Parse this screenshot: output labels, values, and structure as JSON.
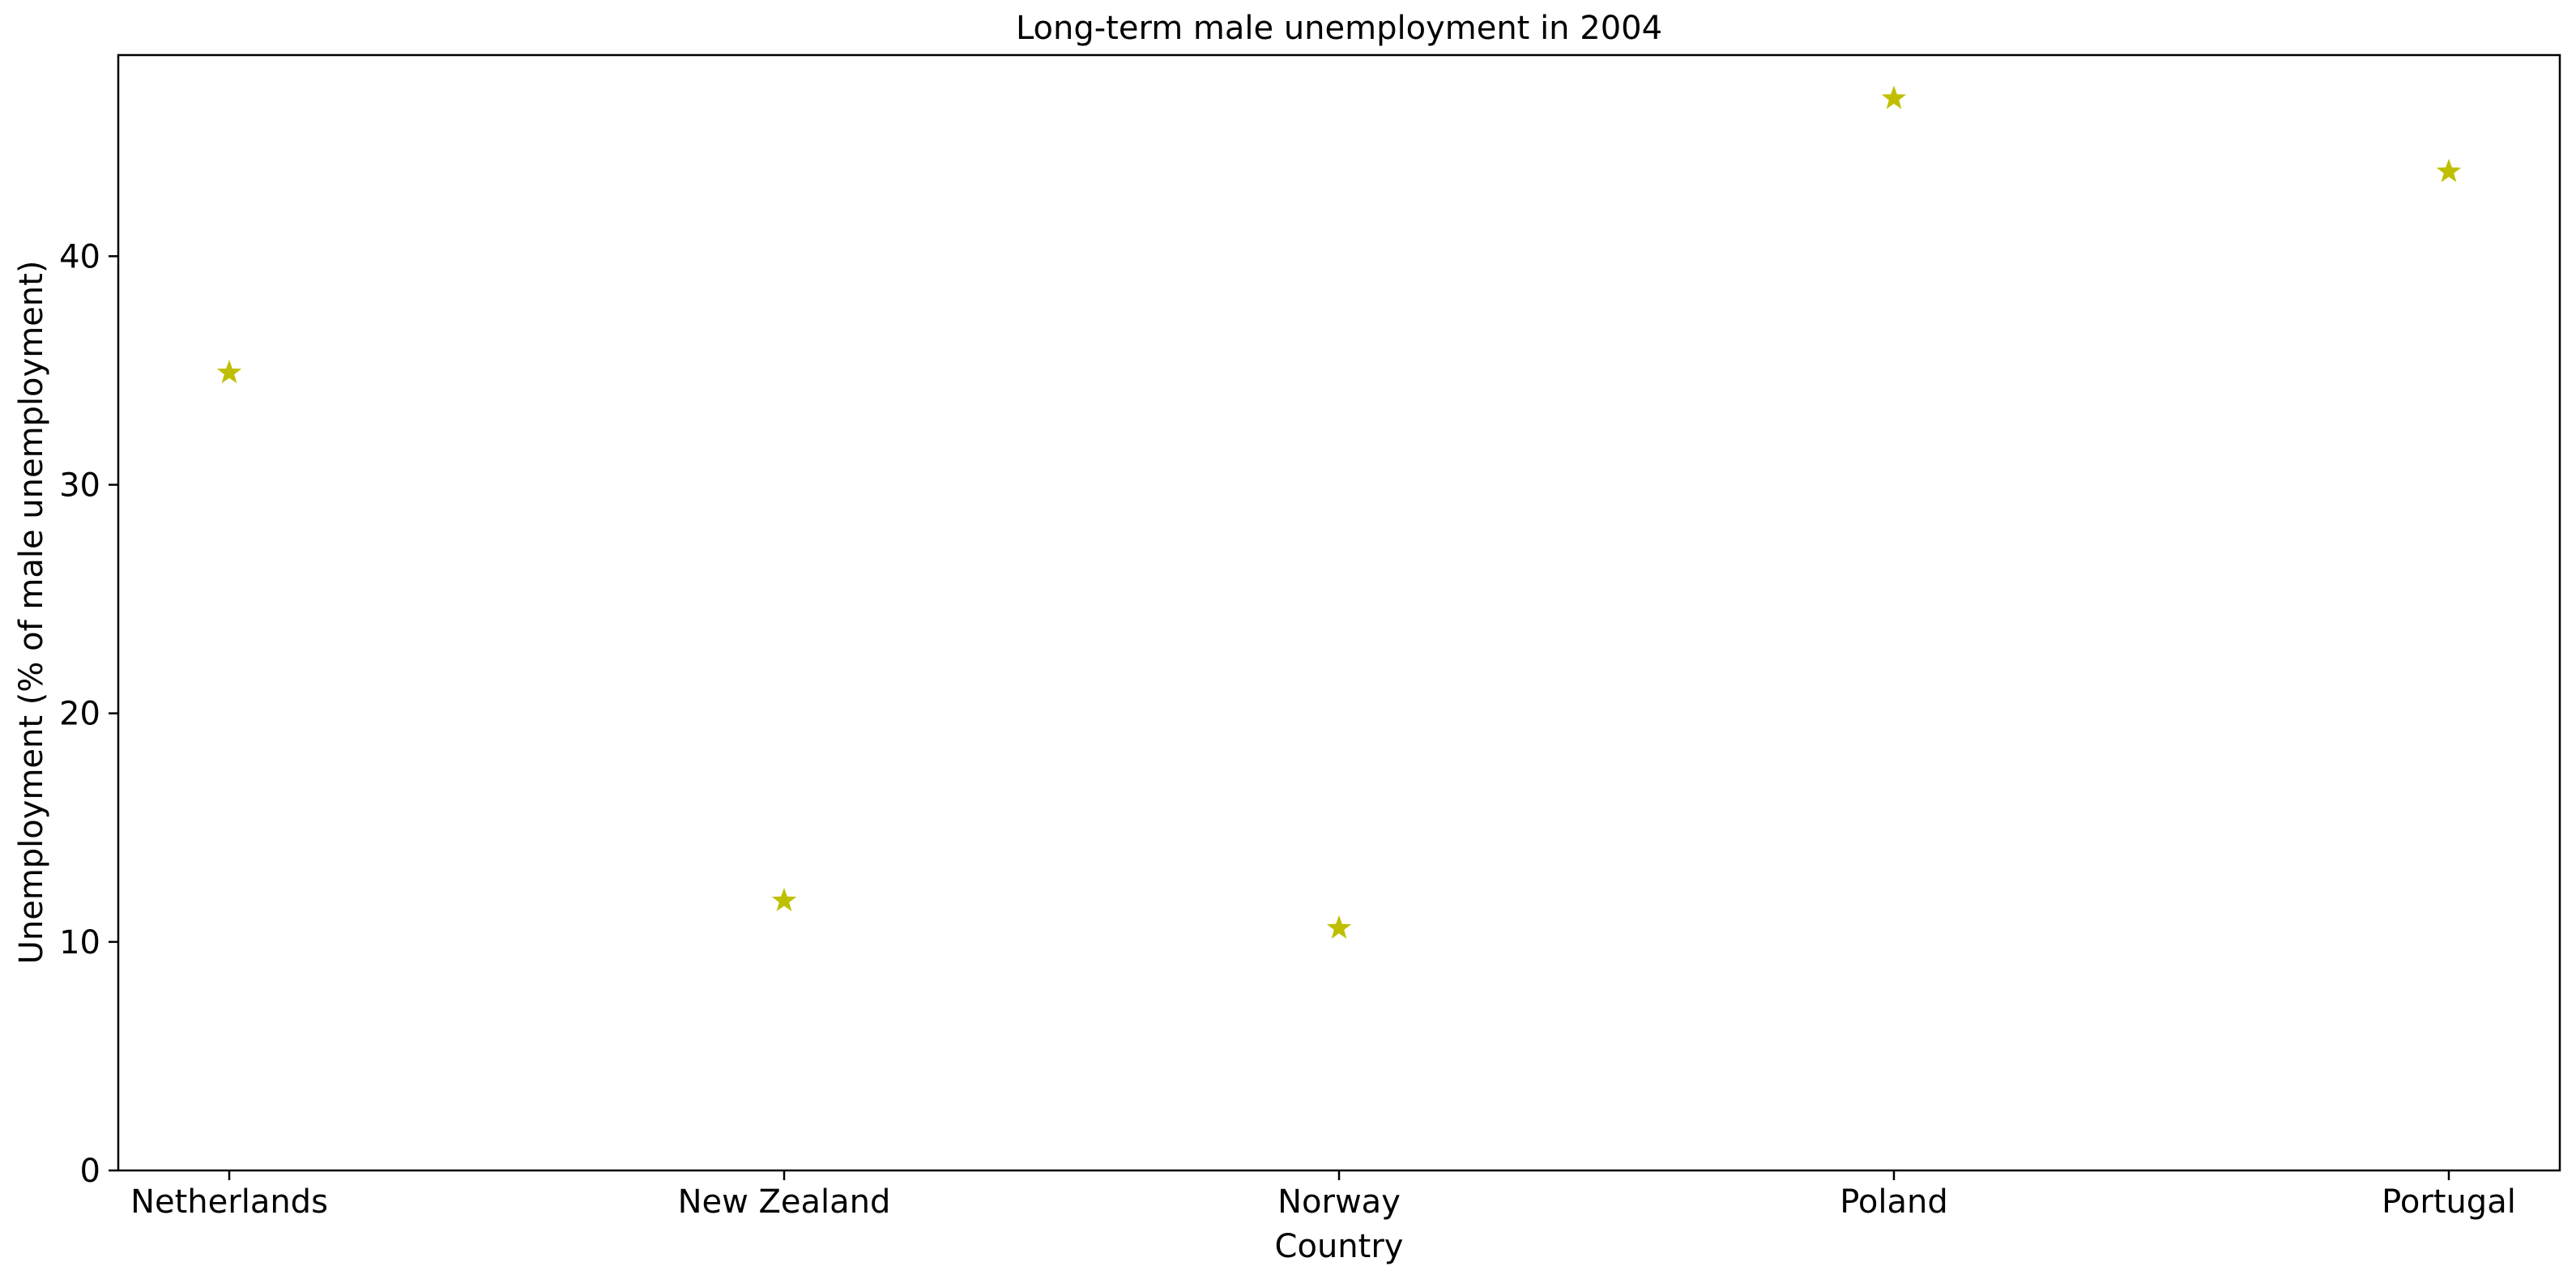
{
  "chart_data": {
    "type": "scatter",
    "title": "Long-term male unemployment in 2004",
    "xlabel": "Country",
    "ylabel": "Unemployment (% of male unemployment)",
    "categories": [
      "Netherlands",
      "New Zealand",
      "Norway",
      "Poland",
      "Portugal"
    ],
    "series": [
      {
        "values": [
          34.9,
          11.8,
          10.6,
          46.9,
          43.7
        ]
      }
    ],
    "ylim": [
      0,
      48.8
    ],
    "yticks": [
      0,
      10,
      20,
      30,
      40
    ],
    "marker": "star",
    "marker_color": "#bfbf00",
    "grid": false
  }
}
